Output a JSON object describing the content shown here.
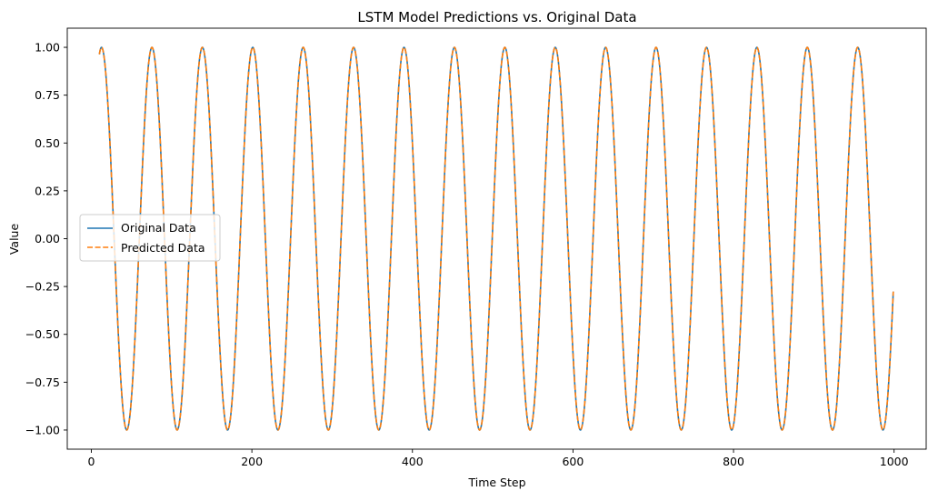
{
  "chart_data": {
    "type": "line",
    "title": "LSTM Model Predictions vs. Original Data",
    "xlabel": "Time Step",
    "ylabel": "Value",
    "xlim": [
      -30,
      1040
    ],
    "ylim": [
      -1.1,
      1.1
    ],
    "xticks": [
      0,
      200,
      400,
      600,
      800,
      1000
    ],
    "xtick_labels": [
      "0",
      "200",
      "400",
      "600",
      "800",
      "1000"
    ],
    "yticks": [
      1.0,
      0.75,
      0.5,
      0.25,
      0.0,
      -0.25,
      -0.5,
      -0.75,
      -1.0
    ],
    "ytick_labels": [
      "1.00",
      "0.75",
      "0.50",
      "0.25",
      "0.00",
      "−0.25",
      "−0.50",
      "−0.75",
      "−1.00"
    ],
    "x_range": [
      10,
      999
    ],
    "period": 62.8,
    "grid": false,
    "legend_position": "center-left",
    "series": [
      {
        "name": "Original Data",
        "color": "#1f77b4",
        "style": "solid"
      },
      {
        "name": "Predicted Data",
        "color": "#ff7f0e",
        "style": "dashed"
      }
    ]
  }
}
